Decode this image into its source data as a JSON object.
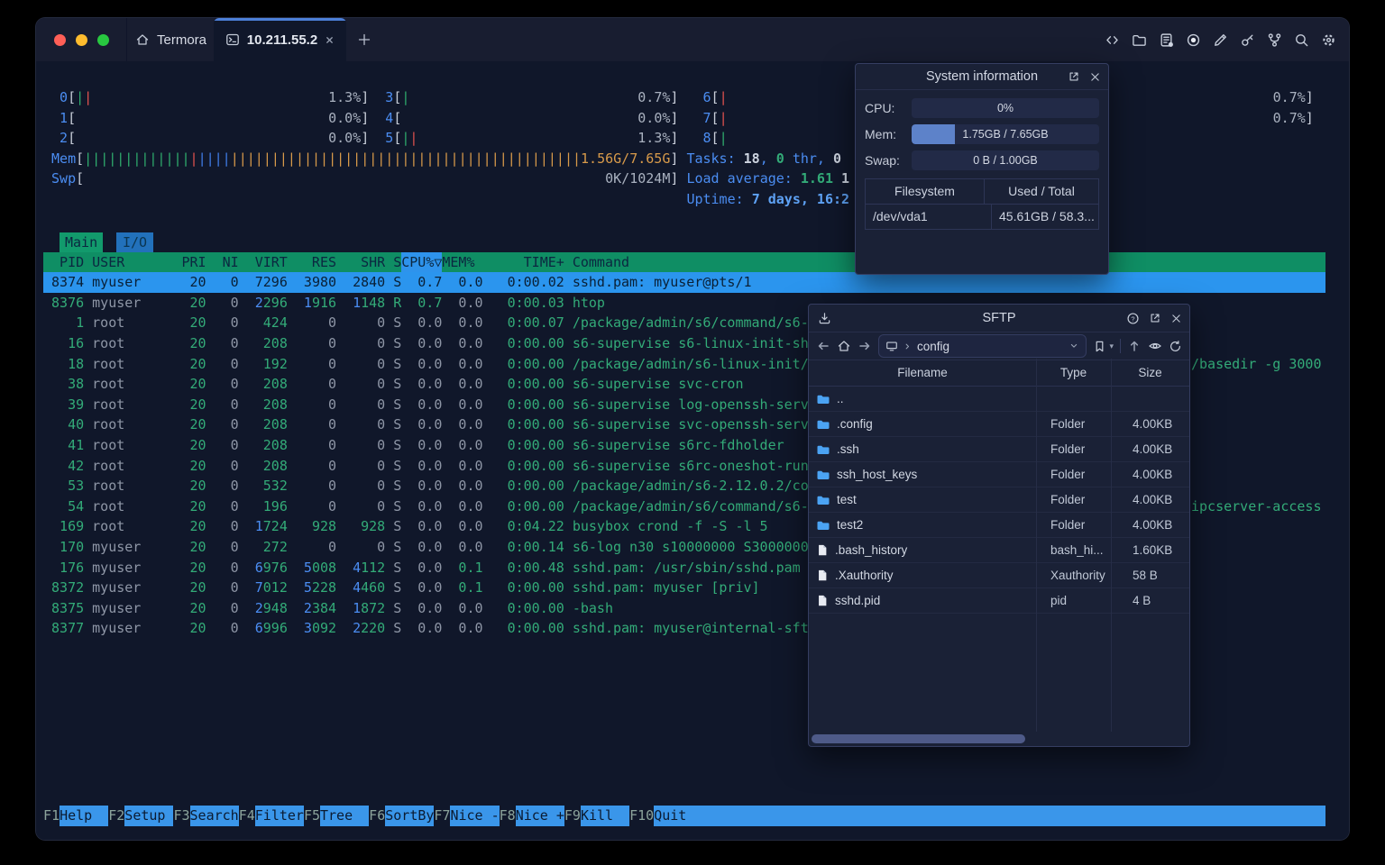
{
  "titlebar": {
    "home_tab_label": "Termora",
    "active_tab_label": "10.211.55.2",
    "toolbar_icons": [
      "code-icon",
      "folder-icon",
      "log-document-icon",
      "record-icon",
      "pencil-icon",
      "key-icon",
      "git-branch-icon",
      "search-icon",
      "settings-icon"
    ]
  },
  "system_info": {
    "title": "System information",
    "title_icons": [
      "open-in-window-icon",
      "close-icon"
    ],
    "rows": [
      {
        "label": "CPU:",
        "text": "0%",
        "fill_pct": 0
      },
      {
        "label": "Mem:",
        "text": "1.75GB / 7.65GB",
        "fill_pct": 23
      },
      {
        "label": "Swap:",
        "text": "0 B / 1.00GB",
        "fill_pct": 0
      }
    ],
    "fs_headers": [
      "Filesystem",
      "Used / Total"
    ],
    "fs_row": [
      "/dev/vda1",
      "45.61GB / 58.3..."
    ]
  },
  "sftp": {
    "title": "SFTP",
    "title_icons": [
      "download-icon",
      "help-icon",
      "open-in-window-icon",
      "close-icon"
    ],
    "toolbar_icons": [
      "back-icon",
      "home-icon",
      "forward-icon",
      "computer-icon",
      "bookmark-icon",
      "up-icon",
      "eye-icon",
      "refresh-icon"
    ],
    "path": "config",
    "columns": [
      "Filename",
      "Type",
      "Size"
    ],
    "files": [
      {
        "name": "..",
        "icon": "folder",
        "type": "",
        "size": ""
      },
      {
        "name": ".config",
        "icon": "folder",
        "type": "Folder",
        "size": "4.00KB"
      },
      {
        "name": ".ssh",
        "icon": "folder",
        "type": "Folder",
        "size": "4.00KB"
      },
      {
        "name": "ssh_host_keys",
        "icon": "folder",
        "type": "Folder",
        "size": "4.00KB"
      },
      {
        "name": "test",
        "icon": "folder",
        "type": "Folder",
        "size": "4.00KB"
      },
      {
        "name": "test2",
        "icon": "folder",
        "type": "Folder",
        "size": "4.00KB"
      },
      {
        "name": ".bash_history",
        "icon": "file",
        "type": "bash_hi...",
        "size": "1.60KB"
      },
      {
        "name": ".Xauthority",
        "icon": "file",
        "type": "Xauthority",
        "size": "58 B"
      },
      {
        "name": "sshd.pid",
        "icon": "file",
        "type": "pid",
        "size": "4 B"
      }
    ]
  },
  "htop": {
    "cpu_meters": [
      {
        "id": "0",
        "bars": "gr",
        "pct": "1.3%",
        "col": 1,
        "inner": 35,
        "line": 0
      },
      {
        "id": "1",
        "bars": "",
        "pct": "0.0%",
        "col": 1,
        "inner": 35,
        "line": 1
      },
      {
        "id": "2",
        "bars": "",
        "pct": "0.0%",
        "col": 1,
        "inner": 35,
        "line": 2
      },
      {
        "id": "3",
        "bars": "g",
        "pct": "0.7%",
        "col": 41,
        "inner": 33,
        "line": 0
      },
      {
        "id": "4",
        "bars": "",
        "pct": "0.0%",
        "col": 41,
        "inner": 33,
        "line": 1
      },
      {
        "id": "5",
        "bars": "gr",
        "pct": "1.3%",
        "col": 41,
        "inner": 33,
        "line": 2
      },
      {
        "id": "6",
        "bars": "r",
        "pct": "0.7%",
        "col": 80,
        "inner": 72,
        "line": 0
      },
      {
        "id": "7",
        "bars": "r",
        "pct": "0.7%",
        "col": 80,
        "inner": 72,
        "line": 1
      },
      {
        "id": "8",
        "bars": "g",
        "pct": null,
        "col": 80,
        "inner": null,
        "line": 2
      }
    ],
    "mem": {
      "label": "Mem",
      "green": 13,
      "red": 1,
      "blue": 4,
      "orange": 43,
      "text": "1.56G/7.65G"
    },
    "swp": {
      "label": "Swp",
      "text": "0K/1024M"
    },
    "tasks": [
      [
        "blue",
        "Tasks: "
      ],
      [
        "whiteb",
        "18"
      ],
      [
        "blue",
        ", "
      ],
      [
        "greenb",
        "0"
      ],
      [
        "blue",
        " thr, "
      ],
      [
        "whiteb",
        "0 "
      ]
    ],
    "load": [
      [
        "blue",
        "Load average: "
      ],
      [
        "greenb",
        "1.61"
      ],
      [
        "whiteb",
        " 1"
      ]
    ],
    "uptime": [
      [
        "blue",
        "Uptime: "
      ],
      [
        "cyanb",
        "7 days, 16:2"
      ]
    ],
    "tabs": {
      "main": "Main",
      "io": "I/O"
    },
    "header": {
      "pid": "PID",
      "user": "USER",
      "pri": "PRI",
      "ni": "NI",
      "virt": "VIRT",
      "res": "RES",
      "shr": "SHR",
      "s": "S",
      "cpu": "CPU%▽",
      "mem": "MEM%",
      "time": "TIME+",
      "cmd": "Command"
    },
    "processes": [
      {
        "pid": "8374",
        "user": "myuser",
        "pri": "20",
        "ni": "0",
        "virt": "7296",
        "res": "3980",
        "shr": "2840",
        "s": "S",
        "cpu": "0.7",
        "mem": "0.0",
        "time": "0:00.02",
        "cmd": "sshd.pam: myuser@pts/1",
        "selected": true
      },
      {
        "pid": "8376",
        "user": "myuser",
        "pri": "20",
        "ni": "0",
        "virt": "2296",
        "res": "1916",
        "shr": "1148",
        "s": "R",
        "cpu": "0.7",
        "mem": "0.0",
        "time": "0:00.03",
        "cmd": "htop"
      },
      {
        "pid": "1",
        "user": "root",
        "pri": "20",
        "ni": "0",
        "virt": "424",
        "res": "0",
        "shr": "0",
        "s": "S",
        "cpu": "0.0",
        "mem": "0.0",
        "time": "0:00.07",
        "cmd": "/package/admin/s6/command/s6-"
      },
      {
        "pid": "16",
        "user": "root",
        "pri": "20",
        "ni": "0",
        "virt": "208",
        "res": "0",
        "shr": "0",
        "s": "S",
        "cpu": "0.0",
        "mem": "0.0",
        "time": "0:00.00",
        "cmd": "s6-supervise s6-linux-init-sh"
      },
      {
        "pid": "18",
        "user": "root",
        "pri": "20",
        "ni": "0",
        "virt": "192",
        "res": "0",
        "shr": "0",
        "s": "S",
        "cpu": "0.0",
        "mem": "0.0",
        "time": "0:00.00",
        "cmd": "/package/admin/s6-linux-init/"
      },
      {
        "pid": "38",
        "user": "root",
        "pri": "20",
        "ni": "0",
        "virt": "208",
        "res": "0",
        "shr": "0",
        "s": "S",
        "cpu": "0.0",
        "mem": "0.0",
        "time": "0:00.00",
        "cmd": "s6-supervise svc-cron"
      },
      {
        "pid": "39",
        "user": "root",
        "pri": "20",
        "ni": "0",
        "virt": "208",
        "res": "0",
        "shr": "0",
        "s": "S",
        "cpu": "0.0",
        "mem": "0.0",
        "time": "0:00.00",
        "cmd": "s6-supervise log-openssh-serv"
      },
      {
        "pid": "40",
        "user": "root",
        "pri": "20",
        "ni": "0",
        "virt": "208",
        "res": "0",
        "shr": "0",
        "s": "S",
        "cpu": "0.0",
        "mem": "0.0",
        "time": "0:00.00",
        "cmd": "s6-supervise svc-openssh-serv"
      },
      {
        "pid": "41",
        "user": "root",
        "pri": "20",
        "ni": "0",
        "virt": "208",
        "res": "0",
        "shr": "0",
        "s": "S",
        "cpu": "0.0",
        "mem": "0.0",
        "time": "0:00.00",
        "cmd": "s6-supervise s6rc-fdholder"
      },
      {
        "pid": "42",
        "user": "root",
        "pri": "20",
        "ni": "0",
        "virt": "208",
        "res": "0",
        "shr": "0",
        "s": "S",
        "cpu": "0.0",
        "mem": "0.0",
        "time": "0:00.00",
        "cmd": "s6-supervise s6rc-oneshot-run"
      },
      {
        "pid": "53",
        "user": "root",
        "pri": "20",
        "ni": "0",
        "virt": "532",
        "res": "0",
        "shr": "0",
        "s": "S",
        "cpu": "0.0",
        "mem": "0.0",
        "time": "0:00.00",
        "cmd": "/package/admin/s6-2.12.0.2/co"
      },
      {
        "pid": "54",
        "user": "root",
        "pri": "20",
        "ni": "0",
        "virt": "196",
        "res": "0",
        "shr": "0",
        "s": "S",
        "cpu": "0.0",
        "mem": "0.0",
        "time": "0:00.00",
        "cmd": "/package/admin/s6/command/s6-"
      },
      {
        "pid": "169",
        "user": "root",
        "pri": "20",
        "ni": "0",
        "virt": "1724",
        "res": "928",
        "shr": "928",
        "s": "S",
        "cpu": "0.0",
        "mem": "0.0",
        "time": "0:04.22",
        "cmd": "busybox crond -f -S -l 5"
      },
      {
        "pid": "170",
        "user": "myuser",
        "pri": "20",
        "ni": "0",
        "virt": "272",
        "res": "0",
        "shr": "0",
        "s": "S",
        "cpu": "0.0",
        "mem": "0.0",
        "time": "0:00.14",
        "cmd": "s6-log n30 s10000000 S3000000"
      },
      {
        "pid": "176",
        "user": "myuser",
        "pri": "20",
        "ni": "0",
        "virt": "6976",
        "res": "5008",
        "shr": "4112",
        "s": "S",
        "cpu": "0.0",
        "mem": "0.1",
        "time": "0:00.48",
        "cmd": "sshd.pam: /usr/sbin/sshd.pam"
      },
      {
        "pid": "8372",
        "user": "myuser",
        "pri": "20",
        "ni": "0",
        "virt": "7012",
        "res": "5228",
        "shr": "4460",
        "s": "S",
        "cpu": "0.0",
        "mem": "0.1",
        "time": "0:00.00",
        "cmd": "sshd.pam: myuser [priv]"
      },
      {
        "pid": "8375",
        "user": "myuser",
        "pri": "20",
        "ni": "0",
        "virt": "2948",
        "res": "2384",
        "shr": "1872",
        "s": "S",
        "cpu": "0.0",
        "mem": "0.0",
        "time": "0:00.00",
        "cmd": "-bash"
      },
      {
        "pid": "8377",
        "user": "myuser",
        "pri": "20",
        "ni": "0",
        "virt": "6996",
        "res": "3092",
        "shr": "2220",
        "s": "S",
        "cpu": "0.0",
        "mem": "0.0",
        "time": "0:00.00",
        "cmd": "sshd.pam: myuser@internal-sft"
      }
    ],
    "fragments": [
      {
        "text": "/basedir -g 3000",
        "row": 4
      },
      {
        "text": "ipcserver-access",
        "row": 11
      }
    ],
    "fkeys": [
      {
        "key": "F1",
        "label": "Help"
      },
      {
        "key": "F2",
        "label": "Setup"
      },
      {
        "key": "F3",
        "label": "Search"
      },
      {
        "key": "F4",
        "label": "Filter"
      },
      {
        "key": "F5",
        "label": "Tree"
      },
      {
        "key": "F6",
        "label": "SortBy"
      },
      {
        "key": "F7",
        "label": "Nice -"
      },
      {
        "key": "F8",
        "label": "Nice +"
      },
      {
        "key": "F9",
        "label": "Kill"
      },
      {
        "key": "F10",
        "label": "Quit"
      }
    ]
  },
  "colors": {
    "accent_blue": "#2b95ee",
    "header_green": "#0f8e64",
    "folder_blue": "#4ba3f3",
    "mem_fill": "#5d82c9"
  }
}
